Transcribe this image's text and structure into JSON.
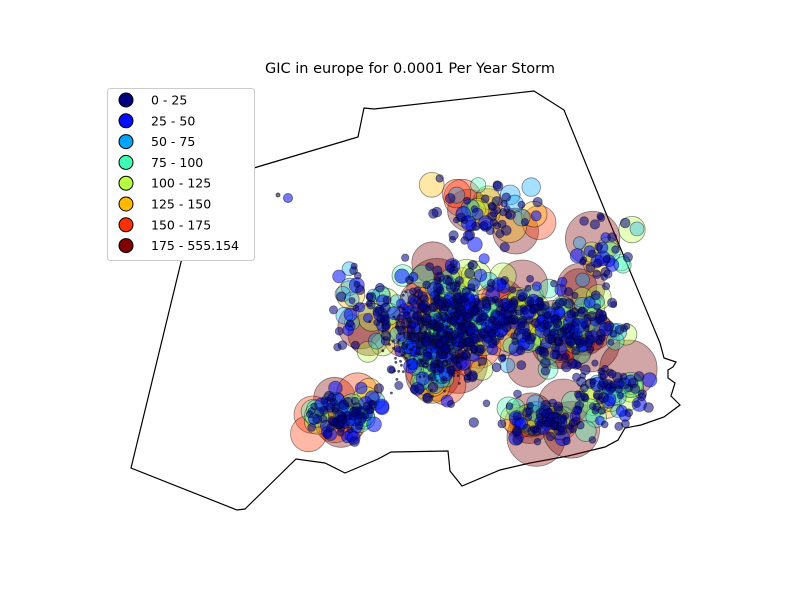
{
  "map": {
    "title": "GIC in europe for 0.0001 Per Year Storm",
    "legend": [
      {
        "label": "0 - 25",
        "color": "#00007f"
      },
      {
        "label": "25 - 50",
        "color": "#0010ff"
      },
      {
        "label": "50 - 75",
        "color": "#00a4ff"
      },
      {
        "label": "75 - 100",
        "color": "#3fffb7"
      },
      {
        "label": "100 - 125",
        "color": "#b7ff3f"
      },
      {
        "label": "125 - 150",
        "color": "#ffb900"
      },
      {
        "label": "150 - 175",
        "color": "#ff3000"
      },
      {
        "label": "175 - 555.154",
        "color": "#7f0000"
      }
    ]
  }
}
